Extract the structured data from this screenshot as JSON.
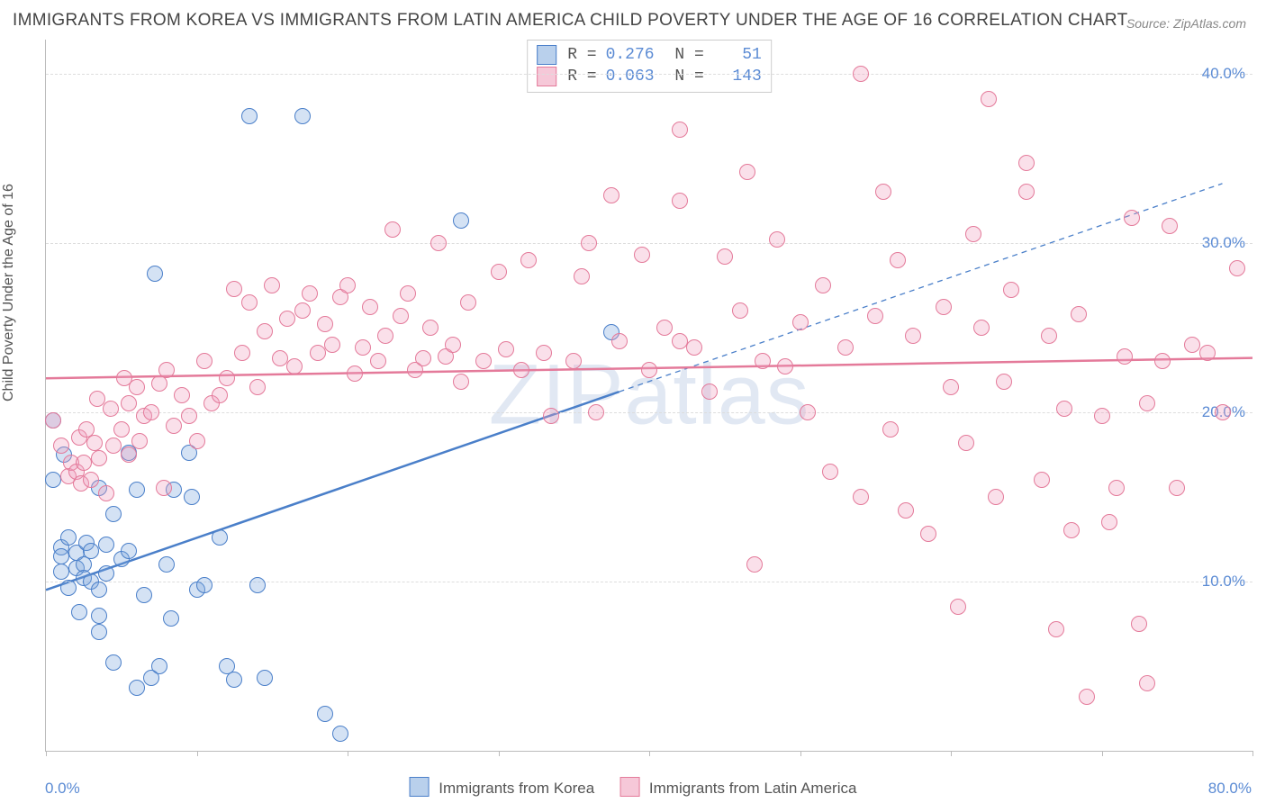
{
  "title": "IMMIGRANTS FROM KOREA VS IMMIGRANTS FROM LATIN AMERICA CHILD POVERTY UNDER THE AGE OF 16 CORRELATION CHART",
  "source": "Source: ZipAtlas.com",
  "watermark": "ZIPatlas",
  "ylabel": "Child Poverty Under the Age of 16",
  "chart": {
    "type": "scatter",
    "xlim": [
      0,
      80
    ],
    "ylim": [
      0,
      42
    ],
    "x_tick_step": 10,
    "x_min_label": "0.0%",
    "x_max_label": "80.0%",
    "y_gridlines": [
      10,
      20,
      30,
      40
    ],
    "y_tick_labels": [
      "10.0%",
      "20.0%",
      "30.0%",
      "40.0%"
    ],
    "background_color": "#ffffff",
    "grid_color": "#dddddd",
    "axis_color": "#bbbbbb",
    "tick_label_color": "#5b8bd4",
    "point_radius": 9,
    "point_stroke_width": 1.5,
    "point_fill_opacity": 0.25,
    "trend_line_width": 2.5
  },
  "series": [
    {
      "name": "Immigrants from Korea",
      "color_stroke": "#4a7fc9",
      "color_fill": "rgba(120,165,220,0.32)",
      "swatch_fill": "#b9d0ec",
      "swatch_border": "#4a7fc9",
      "R": "0.276",
      "N": "51",
      "trend": {
        "x1": 0,
        "y1": 9.5,
        "x2_solid": 38,
        "y2_solid": 21.2,
        "x2_dash": 78,
        "y2_dash": 33.5
      },
      "points": [
        [
          0.5,
          19.5
        ],
        [
          0.5,
          16.0
        ],
        [
          1.0,
          12.0
        ],
        [
          1.0,
          10.6
        ],
        [
          1.0,
          11.5
        ],
        [
          1.2,
          17.5
        ],
        [
          1.5,
          12.6
        ],
        [
          1.5,
          9.6
        ],
        [
          2.0,
          10.8
        ],
        [
          2.0,
          11.7
        ],
        [
          2.2,
          8.2
        ],
        [
          2.5,
          11.0
        ],
        [
          2.5,
          10.2
        ],
        [
          2.7,
          12.3
        ],
        [
          3.0,
          11.8
        ],
        [
          3.0,
          10.0
        ],
        [
          3.5,
          15.5
        ],
        [
          3.5,
          8.0
        ],
        [
          3.5,
          7.0
        ],
        [
          3.5,
          9.5
        ],
        [
          4.0,
          12.2
        ],
        [
          4.0,
          10.5
        ],
        [
          4.5,
          14.0
        ],
        [
          4.5,
          5.2
        ],
        [
          5.0,
          11.3
        ],
        [
          5.5,
          17.6
        ],
        [
          5.5,
          11.8
        ],
        [
          6.0,
          15.4
        ],
        [
          6.0,
          3.7
        ],
        [
          6.5,
          9.2
        ],
        [
          7.0,
          4.3
        ],
        [
          7.2,
          28.2
        ],
        [
          7.5,
          5.0
        ],
        [
          8.0,
          11.0
        ],
        [
          8.3,
          7.8
        ],
        [
          8.5,
          15.4
        ],
        [
          9.5,
          17.6
        ],
        [
          9.7,
          15.0
        ],
        [
          10.0,
          9.5
        ],
        [
          10.5,
          9.8
        ],
        [
          11.5,
          12.6
        ],
        [
          12.0,
          5.0
        ],
        [
          12.5,
          4.2
        ],
        [
          13.5,
          37.5
        ],
        [
          14.0,
          9.8
        ],
        [
          14.5,
          4.3
        ],
        [
          17.0,
          37.5
        ],
        [
          18.5,
          2.2
        ],
        [
          19.5,
          1.0
        ],
        [
          27.5,
          31.3
        ],
        [
          37.5,
          24.7
        ]
      ]
    },
    {
      "name": "Immigrants from Latin America",
      "color_stroke": "#e47a9a",
      "color_fill": "rgba(240,160,190,0.32)",
      "swatch_fill": "#f6c8d8",
      "swatch_border": "#e47a9a",
      "R": "0.063",
      "N": "143",
      "trend": {
        "x1": 0,
        "y1": 22.0,
        "x2_solid": 80,
        "y2_solid": 23.2,
        "x2_dash": 80,
        "y2_dash": 23.2
      },
      "points": [
        [
          0.5,
          19.5
        ],
        [
          1.0,
          18.0
        ],
        [
          1.5,
          16.2
        ],
        [
          1.7,
          17.0
        ],
        [
          2.0,
          16.5
        ],
        [
          2.2,
          18.5
        ],
        [
          2.3,
          15.8
        ],
        [
          2.5,
          17.0
        ],
        [
          2.7,
          19.0
        ],
        [
          3.0,
          16.0
        ],
        [
          3.2,
          18.2
        ],
        [
          3.4,
          20.8
        ],
        [
          3.5,
          17.3
        ],
        [
          4.0,
          15.2
        ],
        [
          4.3,
          20.2
        ],
        [
          4.5,
          18.0
        ],
        [
          5.0,
          19.0
        ],
        [
          5.2,
          22.0
        ],
        [
          5.5,
          17.5
        ],
        [
          5.5,
          20.5
        ],
        [
          6.0,
          21.5
        ],
        [
          6.2,
          18.3
        ],
        [
          6.5,
          19.8
        ],
        [
          7.0,
          20.0
        ],
        [
          7.5,
          21.7
        ],
        [
          7.8,
          15.5
        ],
        [
          8.0,
          22.5
        ],
        [
          8.5,
          19.2
        ],
        [
          9.0,
          21.0
        ],
        [
          9.5,
          19.8
        ],
        [
          10.0,
          18.3
        ],
        [
          10.5,
          23.0
        ],
        [
          11.0,
          20.5
        ],
        [
          11.5,
          21.0
        ],
        [
          12.0,
          22.0
        ],
        [
          12.5,
          27.3
        ],
        [
          13.0,
          23.5
        ],
        [
          13.5,
          26.5
        ],
        [
          14.0,
          21.5
        ],
        [
          14.5,
          24.8
        ],
        [
          15.0,
          27.5
        ],
        [
          15.5,
          23.2
        ],
        [
          16.0,
          25.5
        ],
        [
          16.5,
          22.7
        ],
        [
          17.0,
          26.0
        ],
        [
          17.5,
          27.0
        ],
        [
          18.0,
          23.5
        ],
        [
          18.5,
          25.2
        ],
        [
          19.0,
          24.0
        ],
        [
          19.5,
          26.8
        ],
        [
          20.0,
          27.5
        ],
        [
          20.5,
          22.3
        ],
        [
          21.0,
          23.8
        ],
        [
          21.5,
          26.2
        ],
        [
          22.0,
          23.0
        ],
        [
          22.5,
          24.5
        ],
        [
          23.0,
          30.8
        ],
        [
          23.5,
          25.7
        ],
        [
          24.0,
          27.0
        ],
        [
          24.5,
          22.5
        ],
        [
          25.0,
          23.2
        ],
        [
          25.5,
          25.0
        ],
        [
          26.0,
          30.0
        ],
        [
          26.5,
          23.3
        ],
        [
          27.0,
          24.0
        ],
        [
          27.5,
          21.8
        ],
        [
          28.0,
          26.5
        ],
        [
          29.0,
          23.0
        ],
        [
          30.0,
          28.3
        ],
        [
          30.5,
          23.7
        ],
        [
          31.5,
          22.5
        ],
        [
          32.0,
          29.0
        ],
        [
          33.0,
          23.5
        ],
        [
          33.5,
          19.8
        ],
        [
          35.0,
          23.0
        ],
        [
          35.5,
          28.0
        ],
        [
          36.0,
          30.0
        ],
        [
          36.5,
          20.0
        ],
        [
          37.5,
          32.8
        ],
        [
          38.0,
          24.2
        ],
        [
          39.5,
          29.3
        ],
        [
          40.0,
          22.5
        ],
        [
          41.0,
          25.0
        ],
        [
          42.0,
          24.2
        ],
        [
          42.0,
          36.7
        ],
        [
          42.0,
          32.5
        ],
        [
          43.0,
          23.8
        ],
        [
          44.0,
          21.2
        ],
        [
          45.0,
          29.2
        ],
        [
          46.0,
          26.0
        ],
        [
          46.5,
          34.2
        ],
        [
          47.0,
          11.0
        ],
        [
          47.5,
          23.0
        ],
        [
          48.5,
          30.2
        ],
        [
          49.0,
          22.7
        ],
        [
          50.0,
          25.3
        ],
        [
          50.5,
          20.0
        ],
        [
          51.5,
          27.5
        ],
        [
          52.0,
          16.5
        ],
        [
          53.0,
          23.8
        ],
        [
          54.0,
          15.0
        ],
        [
          54.0,
          40.0
        ],
        [
          55.0,
          25.7
        ],
        [
          55.5,
          33.0
        ],
        [
          56.0,
          19.0
        ],
        [
          56.5,
          29.0
        ],
        [
          57.0,
          14.2
        ],
        [
          57.5,
          24.5
        ],
        [
          58.5,
          12.8
        ],
        [
          59.5,
          26.2
        ],
        [
          60.0,
          21.5
        ],
        [
          60.5,
          8.5
        ],
        [
          61.0,
          18.2
        ],
        [
          61.5,
          30.5
        ],
        [
          62.0,
          25.0
        ],
        [
          62.5,
          38.5
        ],
        [
          63.0,
          15.0
        ],
        [
          63.5,
          21.8
        ],
        [
          64.0,
          27.2
        ],
        [
          65.0,
          33.0
        ],
        [
          65.0,
          34.7
        ],
        [
          66.0,
          16.0
        ],
        [
          66.5,
          24.5
        ],
        [
          67.0,
          7.2
        ],
        [
          67.5,
          20.2
        ],
        [
          68.0,
          13.0
        ],
        [
          68.5,
          25.8
        ],
        [
          69.0,
          3.2
        ],
        [
          70.0,
          19.8
        ],
        [
          70.5,
          13.5
        ],
        [
          71.0,
          15.5
        ],
        [
          71.5,
          23.3
        ],
        [
          72.0,
          31.5
        ],
        [
          72.5,
          7.5
        ],
        [
          73.0,
          20.5
        ],
        [
          73.0,
          4.0
        ],
        [
          74.0,
          23.0
        ],
        [
          74.5,
          31.0
        ],
        [
          75.0,
          15.5
        ],
        [
          76.0,
          24.0
        ],
        [
          77.0,
          23.5
        ],
        [
          78.0,
          20.0
        ],
        [
          79.0,
          28.5
        ]
      ]
    }
  ],
  "top_legend_labels": {
    "R": "R =",
    "N": "N ="
  },
  "bottom_legend": {
    "items": [
      "Immigrants from Korea",
      "Immigrants from Latin America"
    ]
  }
}
